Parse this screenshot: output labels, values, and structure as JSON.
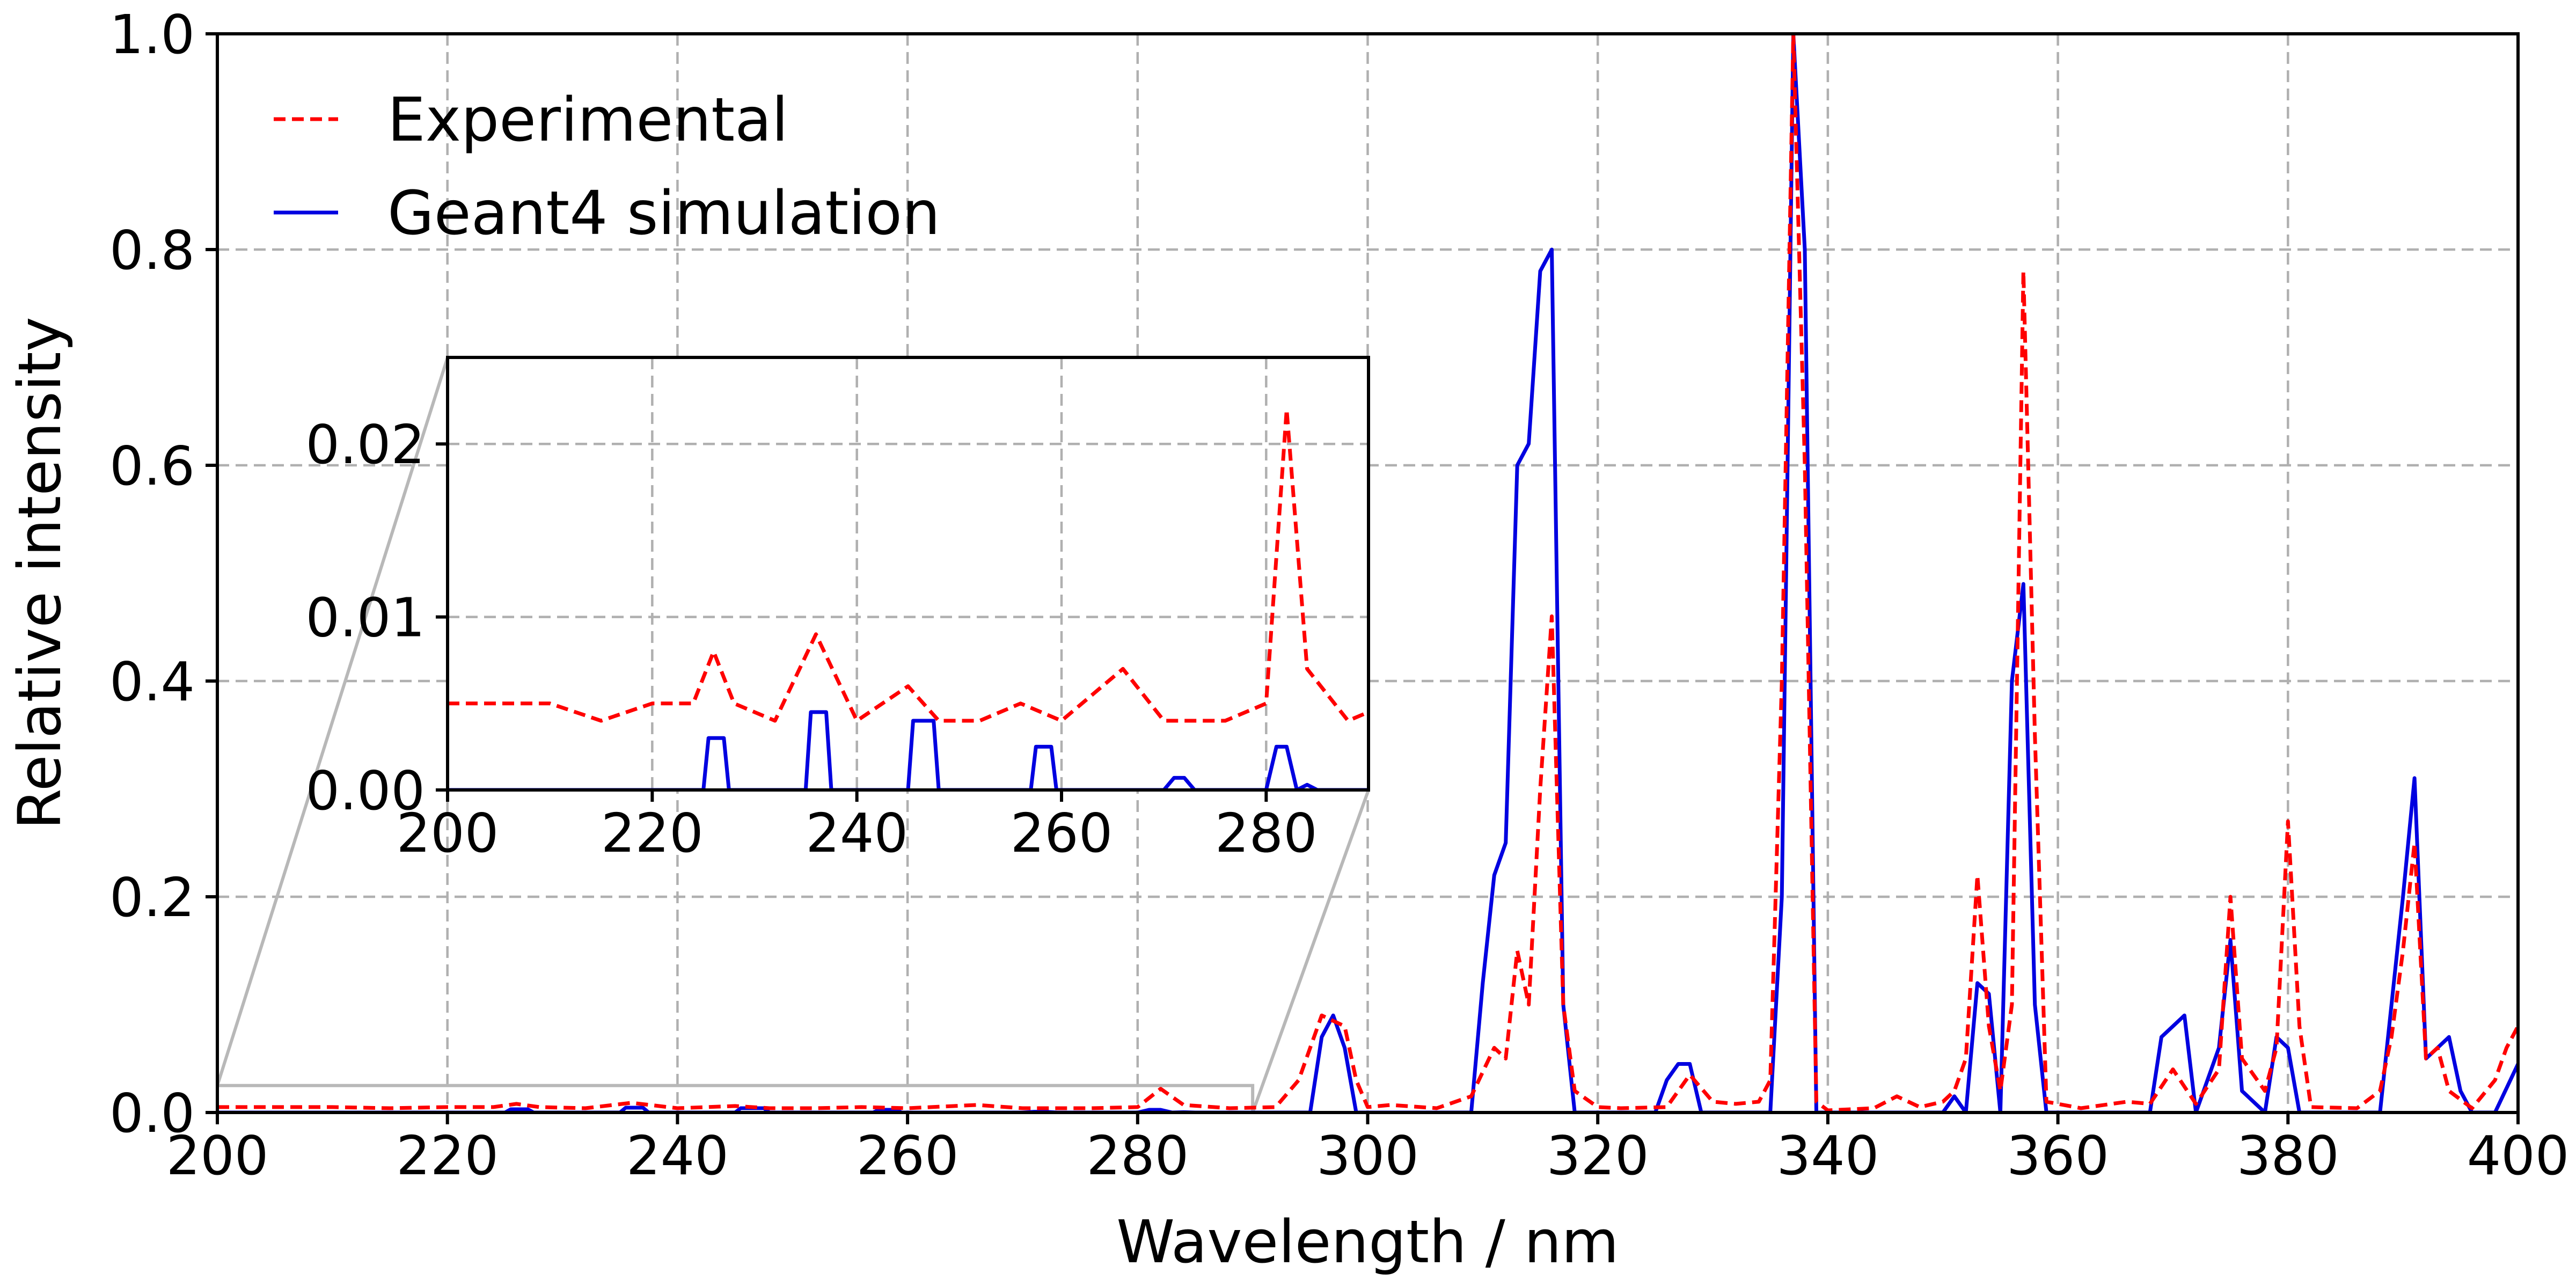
{
  "chart_data": {
    "type": "line",
    "xlabel": "Wavelength / nm",
    "ylabel": "Relative intensity",
    "xlim": [
      200,
      400
    ],
    "ylim": [
      0,
      1.0
    ],
    "x_ticks": [
      200,
      220,
      240,
      260,
      280,
      300,
      320,
      340,
      360,
      380,
      400
    ],
    "x_tick_labels": [
      "200",
      "220",
      "240",
      "260",
      "280",
      "300",
      "320",
      "340",
      "360",
      "380",
      "400"
    ],
    "y_ticks": [
      0.0,
      0.2,
      0.4,
      0.6,
      0.8,
      1.0
    ],
    "y_tick_labels": [
      "0.0",
      "0.2",
      "0.4",
      "0.6",
      "0.8",
      "1.0"
    ],
    "grid": true,
    "legend_position": "top-left",
    "series": [
      {
        "name": "Experimental",
        "color": "#ff0000",
        "style": "dashed",
        "points": [
          [
            200,
            0.005
          ],
          [
            205,
            0.005
          ],
          [
            210,
            0.005
          ],
          [
            215,
            0.004
          ],
          [
            220,
            0.005
          ],
          [
            224,
            0.005
          ],
          [
            226,
            0.008
          ],
          [
            228,
            0.005
          ],
          [
            232,
            0.004
          ],
          [
            236,
            0.009
          ],
          [
            240,
            0.004
          ],
          [
            245,
            0.006
          ],
          [
            248,
            0.004
          ],
          [
            252,
            0.004
          ],
          [
            256,
            0.005
          ],
          [
            260,
            0.004
          ],
          [
            266,
            0.007
          ],
          [
            270,
            0.004
          ],
          [
            276,
            0.004
          ],
          [
            280,
            0.005
          ],
          [
            282,
            0.022
          ],
          [
            284,
            0.007
          ],
          [
            288,
            0.004
          ],
          [
            292,
            0.005
          ],
          [
            294,
            0.03
          ],
          [
            296,
            0.09
          ],
          [
            298,
            0.08
          ],
          [
            299,
            0.03
          ],
          [
            300,
            0.005
          ],
          [
            302,
            0.007
          ],
          [
            306,
            0.004
          ],
          [
            309,
            0.015
          ],
          [
            311,
            0.06
          ],
          [
            312,
            0.05
          ],
          [
            313,
            0.15
          ],
          [
            314,
            0.1
          ],
          [
            315,
            0.3
          ],
          [
            316,
            0.46
          ],
          [
            317,
            0.1
          ],
          [
            318,
            0.02
          ],
          [
            320,
            0.005
          ],
          [
            322,
            0.004
          ],
          [
            326,
            0.005
          ],
          [
            328,
            0.035
          ],
          [
            330,
            0.01
          ],
          [
            332,
            0.008
          ],
          [
            334,
            0.01
          ],
          [
            335,
            0.03
          ],
          [
            336,
            0.4
          ],
          [
            337,
            1.0
          ],
          [
            338,
            0.6
          ],
          [
            339,
            0.01
          ],
          [
            340,
            0.002
          ],
          [
            344,
            0.004
          ],
          [
            346,
            0.015
          ],
          [
            348,
            0.005
          ],
          [
            350,
            0.01
          ],
          [
            351,
            0.02
          ],
          [
            352,
            0.05
          ],
          [
            353,
            0.22
          ],
          [
            354,
            0.08
          ],
          [
            355,
            0.02
          ],
          [
            356,
            0.1
          ],
          [
            357,
            0.78
          ],
          [
            358,
            0.35
          ],
          [
            359,
            0.01
          ],
          [
            362,
            0.004
          ],
          [
            366,
            0.01
          ],
          [
            368,
            0.008
          ],
          [
            370,
            0.04
          ],
          [
            372,
            0.008
          ],
          [
            374,
            0.04
          ],
          [
            375,
            0.2
          ],
          [
            376,
            0.05
          ],
          [
            378,
            0.02
          ],
          [
            379,
            0.06
          ],
          [
            380,
            0.27
          ],
          [
            381,
            0.08
          ],
          [
            382,
            0.005
          ],
          [
            386,
            0.004
          ],
          [
            388,
            0.02
          ],
          [
            389,
            0.07
          ],
          [
            390,
            0.15
          ],
          [
            391,
            0.25
          ],
          [
            392,
            0.05
          ],
          [
            393,
            0.06
          ],
          [
            394,
            0.02
          ],
          [
            396,
            0.004
          ],
          [
            398,
            0.03
          ],
          [
            399,
            0.06
          ],
          [
            400,
            0.08
          ]
        ]
      },
      {
        "name": "Geant4 simulation",
        "color": "#0000e0",
        "style": "solid",
        "points": [
          [
            200,
            0.0
          ],
          [
            225,
            0.0
          ],
          [
            225.5,
            0.003
          ],
          [
            227,
            0.003
          ],
          [
            227.5,
            0.0
          ],
          [
            235,
            0.0
          ],
          [
            235.5,
            0.0045
          ],
          [
            237,
            0.0045
          ],
          [
            237.5,
            0.0
          ],
          [
            245,
            0.0
          ],
          [
            245.5,
            0.004
          ],
          [
            247.5,
            0.004
          ],
          [
            248,
            0.0
          ],
          [
            257,
            0.0
          ],
          [
            257.5,
            0.0025
          ],
          [
            259,
            0.0025
          ],
          [
            259.5,
            0.0
          ],
          [
            270,
            0.0
          ],
          [
            271,
            0.0007
          ],
          [
            272,
            0.0007
          ],
          [
            273,
            0.0
          ],
          [
            280,
            0.0
          ],
          [
            281,
            0.0025
          ],
          [
            282,
            0.0025
          ],
          [
            283,
            0.0
          ],
          [
            284,
            0.0003
          ],
          [
            285,
            0.0
          ],
          [
            290,
            0.0
          ],
          [
            295,
            0.0
          ],
          [
            296,
            0.07
          ],
          [
            297,
            0.09
          ],
          [
            298,
            0.06
          ],
          [
            299,
            0.0
          ],
          [
            309,
            0.0
          ],
          [
            310,
            0.12
          ],
          [
            311,
            0.22
          ],
          [
            312,
            0.25
          ],
          [
            313,
            0.6
          ],
          [
            314,
            0.62
          ],
          [
            315,
            0.78
          ],
          [
            316,
            0.8
          ],
          [
            317,
            0.1
          ],
          [
            318,
            0.0
          ],
          [
            325,
            0.0
          ],
          [
            326,
            0.03
          ],
          [
            327,
            0.045
          ],
          [
            328,
            0.045
          ],
          [
            329,
            0.0
          ],
          [
            335,
            0.0
          ],
          [
            336,
            0.2
          ],
          [
            337,
            1.0
          ],
          [
            338,
            0.8
          ],
          [
            339,
            0.0
          ],
          [
            350,
            0.0
          ],
          [
            351,
            0.015
          ],
          [
            352,
            0.0
          ],
          [
            353,
            0.12
          ],
          [
            354,
            0.11
          ],
          [
            355,
            0.0
          ],
          [
            356,
            0.4
          ],
          [
            357,
            0.49
          ],
          [
            358,
            0.1
          ],
          [
            359,
            0.0
          ],
          [
            368,
            0.0
          ],
          [
            369,
            0.07
          ],
          [
            371,
            0.09
          ],
          [
            372,
            0.0
          ],
          [
            374,
            0.06
          ],
          [
            375,
            0.16
          ],
          [
            376,
            0.02
          ],
          [
            378,
            0.0
          ],
          [
            379,
            0.07
          ],
          [
            380,
            0.06
          ],
          [
            381,
            0.0
          ],
          [
            388,
            0.0
          ],
          [
            389,
            0.1
          ],
          [
            390,
            0.2
          ],
          [
            391,
            0.31
          ],
          [
            392,
            0.05
          ],
          [
            393,
            0.06
          ],
          [
            394,
            0.07
          ],
          [
            395,
            0.02
          ],
          [
            396,
            0.0
          ],
          [
            398,
            0.0
          ],
          [
            400,
            0.045
          ]
        ]
      }
    ],
    "inset": {
      "xlim": [
        200,
        290
      ],
      "ylim": [
        0,
        0.025
      ],
      "x_ticks": [
        200,
        220,
        240,
        260,
        280
      ],
      "x_tick_labels": [
        "200",
        "220",
        "240",
        "260",
        "280"
      ],
      "y_ticks": [
        0.0,
        0.01,
        0.02
      ],
      "y_tick_labels": [
        "0.00",
        "0.01",
        "0.02"
      ],
      "grid": true
    }
  }
}
